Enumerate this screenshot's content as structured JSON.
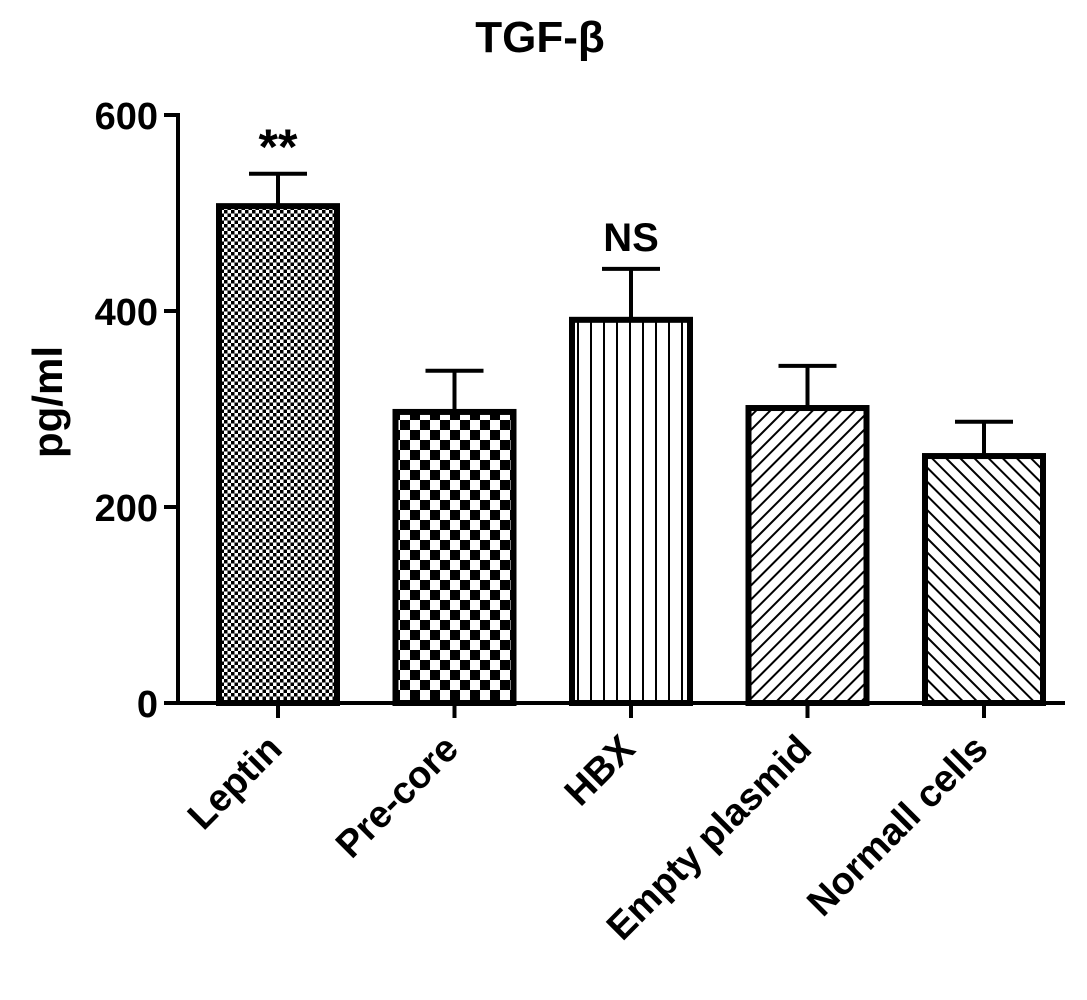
{
  "chart_data": {
    "type": "bar",
    "title": "TGF-β",
    "xlabel": "",
    "ylabel": "pg/ml",
    "ylim": [
      0,
      600
    ],
    "yticks": [
      0,
      200,
      400,
      600
    ],
    "categories": [
      "Leptin",
      "Pre-core",
      "HBX",
      "Empty plasmid",
      "Normall cells"
    ],
    "values": [
      507,
      297,
      391,
      301,
      252
    ],
    "errors": [
      33,
      42,
      52,
      43,
      35
    ],
    "annotations": [
      "**",
      "",
      "NS",
      "",
      ""
    ],
    "fill_patterns": [
      "fine-dots",
      "checkerboard",
      "vertical-lines",
      "diagonal-lines",
      "diagonal-lines-reverse"
    ],
    "colors": {
      "bar_stroke": "#000000",
      "bar_fill": "#ffffff",
      "axis": "#000000"
    },
    "grid": false,
    "legend": "none"
  }
}
